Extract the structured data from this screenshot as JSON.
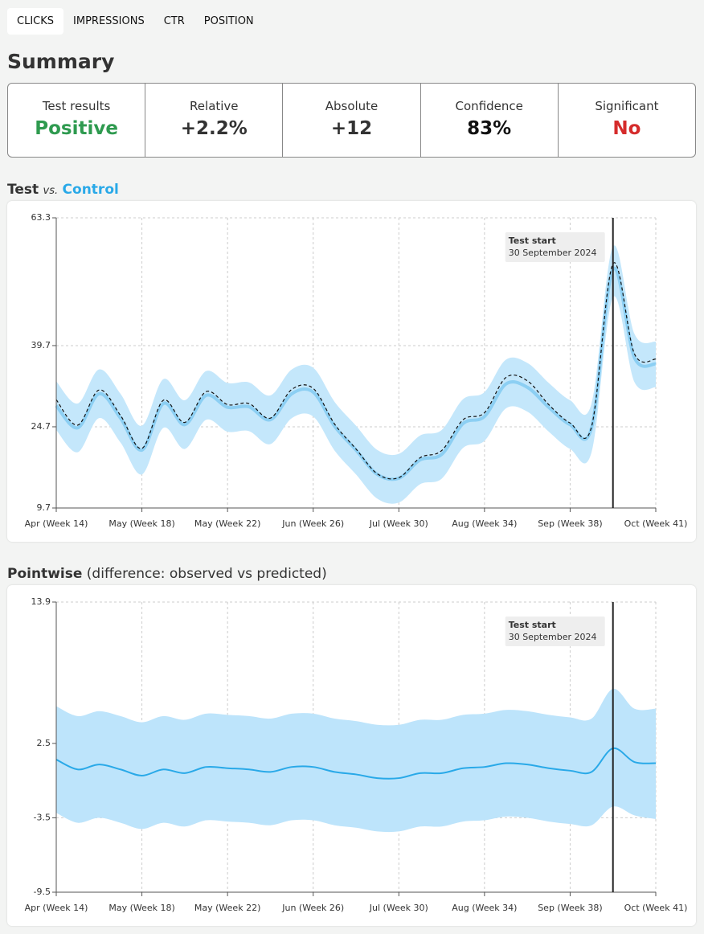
{
  "tabs": [
    "CLICKS",
    "IMPRESSIONS",
    "CTR",
    "POSITION"
  ],
  "active_tab": 0,
  "summary": {
    "title": "Summary",
    "cards": [
      {
        "label": "Test results",
        "value": "Positive",
        "color": "#2e9a4f"
      },
      {
        "label": "Relative",
        "value": "+2.2%",
        "color": "#333333"
      },
      {
        "label": "Absolute",
        "value": "+12",
        "color": "#333333"
      },
      {
        "label": "Confidence",
        "value": "83%",
        "color": "#111111"
      },
      {
        "label": "Significant",
        "value": "No",
        "color": "#d52b2b"
      }
    ]
  },
  "chart_data": [
    {
      "type": "line",
      "title_connector": "vs.",
      "x": [
        0,
        0.25,
        0.5,
        0.75,
        1,
        1.25,
        1.5,
        1.75,
        2,
        2.25,
        2.5,
        2.75,
        3,
        3.25,
        3.5,
        3.75,
        4,
        4.25,
        4.5,
        4.75,
        5,
        5.25,
        5.5,
        5.75,
        6,
        6.25,
        6.5,
        6.75,
        7
      ],
      "xlim": [
        0,
        7
      ],
      "xticks": [
        {
          "value": 0,
          "label": "Apr (Week 14)"
        },
        {
          "value": 1,
          "label": "May (Week 18)"
        },
        {
          "value": 2,
          "label": "May (Week 22)"
        },
        {
          "value": 3,
          "label": "Jun (Week 26)"
        },
        {
          "value": 4,
          "label": "Jul (Week 30)"
        },
        {
          "value": 5,
          "label": "Aug (Week 34)"
        },
        {
          "value": 6,
          "label": "Sep (Week 38)"
        },
        {
          "value": 7,
          "label": "Oct (Week 41)"
        }
      ],
      "ylim": [
        9.7,
        63.3
      ],
      "yticks": [
        9.7,
        24.7,
        39.7,
        63.3
      ],
      "grid": true,
      "series": [
        {
          "name": "Test",
          "color": "#111111",
          "dashed": true,
          "values": [
            29.7,
            25.0,
            31.5,
            26.8,
            20.7,
            29.6,
            25.5,
            31.2,
            28.8,
            29.0,
            26.3,
            31.6,
            31.8,
            25.2,
            20.6,
            16.0,
            15.3,
            19.0,
            20.3,
            26.0,
            27.3,
            33.8,
            33.2,
            28.8,
            25.4,
            24.7,
            54.8,
            38.2,
            37.2
          ]
        },
        {
          "name": "Control",
          "color": "#29a9e8",
          "line_color": "#8ccff3",
          "band_color": "#c4e7fb",
          "values": [
            28.6,
            24.5,
            30.8,
            26.3,
            20.4,
            29.0,
            25.1,
            30.5,
            28.3,
            28.4,
            26.0,
            30.8,
            31.1,
            24.8,
            20.4,
            15.9,
            15.2,
            18.6,
            19.6,
            25.3,
            26.6,
            32.6,
            32.0,
            28.3,
            25.1,
            24.5,
            53.8,
            37.5,
            36.3
          ],
          "lower": [
            24.1,
            20.0,
            26.3,
            21.8,
            15.9,
            24.5,
            20.6,
            26.0,
            23.8,
            23.9,
            21.5,
            26.3,
            26.6,
            20.3,
            15.9,
            11.4,
            10.7,
            14.1,
            15.1,
            20.8,
            22.1,
            28.1,
            27.5,
            23.8,
            20.6,
            20.0,
            48.6,
            33.0,
            32.0
          ],
          "upper": [
            33.1,
            29.0,
            35.3,
            30.8,
            24.9,
            33.5,
            29.6,
            35.0,
            32.8,
            32.9,
            30.5,
            35.3,
            35.6,
            29.3,
            24.9,
            20.4,
            19.7,
            23.1,
            24.1,
            29.8,
            31.1,
            37.1,
            36.5,
            32.8,
            29.6,
            29.0,
            58.0,
            41.9,
            40.4
          ]
        }
      ],
      "event": {
        "x": 6.5,
        "label": "Test start",
        "date": "30 September 2024"
      }
    },
    {
      "type": "line",
      "title": "Pointwise",
      "subtitle": "(difference: observed vs predicted)",
      "x": [
        0,
        0.25,
        0.5,
        0.75,
        1,
        1.25,
        1.5,
        1.75,
        2,
        2.25,
        2.5,
        2.75,
        3,
        3.25,
        3.5,
        3.75,
        4,
        4.25,
        4.5,
        4.75,
        5,
        5.25,
        5.5,
        5.75,
        6,
        6.25,
        6.5,
        6.75,
        7
      ],
      "xlim": [
        0,
        7
      ],
      "xticks": [
        {
          "value": 0,
          "label": "Apr (Week 14)"
        },
        {
          "value": 1,
          "label": "May (Week 18)"
        },
        {
          "value": 2,
          "label": "May (Week 22)"
        },
        {
          "value": 3,
          "label": "Jun (Week 26)"
        },
        {
          "value": 4,
          "label": "Jul (Week 30)"
        },
        {
          "value": 5,
          "label": "Aug (Week 34)"
        },
        {
          "value": 6,
          "label": "Sep (Week 38)"
        },
        {
          "value": 7,
          "label": "Oct (Week 41)"
        }
      ],
      "ylim": [
        -9.5,
        13.9
      ],
      "yticks": [
        -9.5,
        -3.5,
        2.5,
        13.9
      ],
      "grid": true,
      "series": [
        {
          "color": "#29a9e8",
          "line_color": "#29a9e8",
          "band_color": "#bde4fb",
          "values": [
            1.2,
            0.4,
            0.8,
            0.4,
            -0.1,
            0.4,
            0.1,
            0.6,
            0.5,
            0.4,
            0.2,
            0.6,
            0.6,
            0.2,
            0.0,
            -0.3,
            -0.3,
            0.1,
            0.1,
            0.5,
            0.6,
            0.9,
            0.8,
            0.5,
            0.3,
            0.2,
            2.1,
            1.0,
            0.9
          ],
          "lower": [
            -3.1,
            -3.9,
            -3.5,
            -3.9,
            -4.4,
            -3.9,
            -4.2,
            -3.7,
            -3.8,
            -3.9,
            -4.1,
            -3.7,
            -3.7,
            -4.1,
            -4.3,
            -4.6,
            -4.6,
            -4.2,
            -4.2,
            -3.8,
            -3.7,
            -3.4,
            -3.5,
            -3.8,
            -4.0,
            -4.1,
            -2.6,
            -3.3,
            -3.6
          ],
          "upper": [
            5.5,
            4.7,
            5.1,
            4.7,
            4.2,
            4.7,
            4.4,
            4.9,
            4.8,
            4.7,
            4.5,
            4.9,
            4.9,
            4.5,
            4.3,
            4.0,
            4.0,
            4.4,
            4.4,
            4.8,
            4.9,
            5.2,
            5.1,
            4.8,
            4.6,
            4.5,
            6.9,
            5.3,
            5.3
          ]
        }
      ],
      "event": {
        "x": 6.5,
        "label": "Test start",
        "date": "30 September 2024"
      }
    }
  ]
}
